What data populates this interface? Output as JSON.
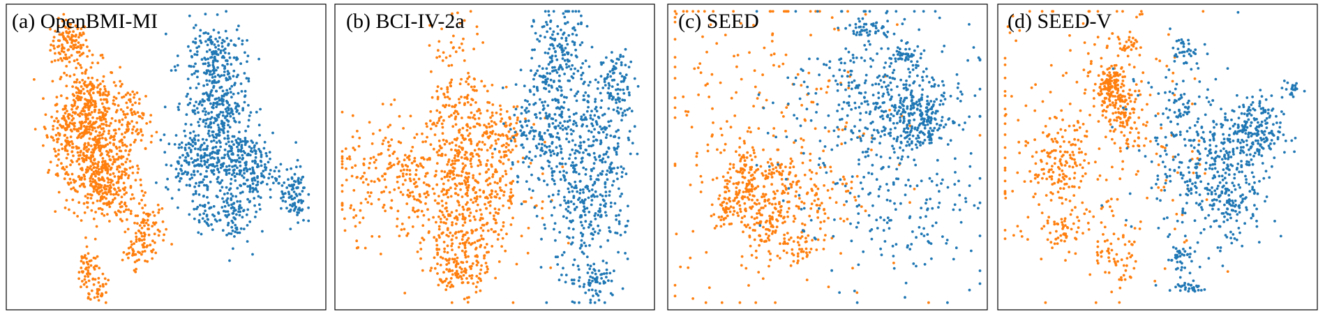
{
  "figure": {
    "background": "#ffffff",
    "frame_color": "#000000"
  },
  "colors": {
    "class_a": "#ff7f0e",
    "class_b": "#1f77b4"
  },
  "chart_data": [
    {
      "type": "scatter",
      "title": "(a) OpenBMI-MI",
      "xlabel": "",
      "ylabel": "",
      "axis_ticks": false,
      "grid": false,
      "legend": "none",
      "xlim": [
        0,
        100
      ],
      "ylim": [
        0,
        100
      ],
      "series": [
        {
          "color": "#ff7f0e",
          "clusters": [
            {
              "cx": 19,
              "cy": 88,
              "sx": 3,
              "sy": 4,
              "n": 120
            },
            {
              "cx": 25,
              "cy": 68,
              "sx": 5,
              "sy": 7,
              "n": 260
            },
            {
              "cx": 28,
              "cy": 52,
              "sx": 6,
              "sy": 8,
              "n": 320
            },
            {
              "cx": 30,
              "cy": 40,
              "sx": 5,
              "sy": 6,
              "n": 220
            },
            {
              "cx": 17,
              "cy": 57,
              "sx": 3,
              "sy": 6,
              "n": 90
            },
            {
              "cx": 40,
              "cy": 62,
              "sx": 3,
              "sy": 6,
              "n": 70
            },
            {
              "cx": 44,
              "cy": 26,
              "sx": 3,
              "sy": 5,
              "n": 80
            },
            {
              "cx": 40,
              "cy": 19,
              "sx": 2,
              "sy": 3,
              "n": 40
            },
            {
              "cx": 25,
              "cy": 12,
              "sx": 2,
              "sy": 4,
              "n": 60
            },
            {
              "cx": 29,
              "cy": 4,
              "sx": 1.5,
              "sy": 2,
              "n": 25
            }
          ]
        },
        {
          "color": "#1f77b4",
          "clusters": [
            {
              "cx": 65,
              "cy": 85,
              "sx": 5,
              "sy": 5,
              "n": 140
            },
            {
              "cx": 66,
              "cy": 68,
              "sx": 5,
              "sy": 7,
              "n": 240
            },
            {
              "cx": 70,
              "cy": 50,
              "sx": 6,
              "sy": 8,
              "n": 260
            },
            {
              "cx": 58,
              "cy": 48,
              "sx": 4,
              "sy": 5,
              "n": 120
            },
            {
              "cx": 78,
              "cy": 45,
              "sx": 4,
              "sy": 6,
              "n": 110
            },
            {
              "cx": 71,
              "cy": 30,
              "sx": 3,
              "sy": 5,
              "n": 80
            },
            {
              "cx": 62,
              "cy": 31,
              "sx": 2,
              "sy": 3,
              "n": 30
            },
            {
              "cx": 91,
              "cy": 37,
              "sx": 2,
              "sy": 5,
              "n": 90
            }
          ]
        }
      ]
    },
    {
      "type": "scatter",
      "title": "(b) BCI-IV-2a",
      "xlabel": "",
      "ylabel": "",
      "axis_ticks": false,
      "grid": false,
      "legend": "none",
      "xlim": [
        0,
        100
      ],
      "ylim": [
        0,
        100
      ],
      "series": [
        {
          "color": "#ff7f0e",
          "clusters": [
            {
              "cx": 39,
              "cy": 68,
              "sx": 5,
              "sy": 14,
              "n": 180
            },
            {
              "cx": 22,
              "cy": 43,
              "sx": 12,
              "sy": 10,
              "n": 320
            },
            {
              "cx": 45,
              "cy": 40,
              "sx": 9,
              "sy": 11,
              "n": 280
            },
            {
              "cx": 38,
              "cy": 20,
              "sx": 7,
              "sy": 8,
              "n": 170
            },
            {
              "cx": 52,
              "cy": 58,
              "sx": 4,
              "sy": 7,
              "n": 80
            },
            {
              "cx": 40,
              "cy": 10,
              "sx": 4,
              "sy": 3,
              "n": 60
            }
          ]
        },
        {
          "color": "#1f77b4",
          "clusters": [
            {
              "cx": 71,
              "cy": 82,
              "sx": 4,
              "sy": 10,
              "n": 180
            },
            {
              "cx": 68,
              "cy": 60,
              "sx": 7,
              "sy": 11,
              "n": 260
            },
            {
              "cx": 84,
              "cy": 55,
              "sx": 5,
              "sy": 14,
              "n": 200
            },
            {
              "cx": 78,
              "cy": 30,
              "sx": 7,
              "sy": 12,
              "n": 220
            },
            {
              "cx": 90,
              "cy": 76,
              "sx": 3,
              "sy": 6,
              "n": 70
            },
            {
              "cx": 82,
              "cy": 9,
              "sx": 3,
              "sy": 3,
              "n": 60
            }
          ]
        }
      ]
    },
    {
      "type": "scatter",
      "title": "(c) SEED",
      "xlabel": "",
      "ylabel": "",
      "axis_ticks": false,
      "grid": false,
      "legend": "none",
      "xlim": [
        0,
        100
      ],
      "ylim": [
        0,
        100
      ],
      "series": [
        {
          "color": "#ff7f0e",
          "clusters": [
            {
              "cx": 24,
              "cy": 42,
              "sx": 4,
              "sy": 6,
              "n": 130
            },
            {
              "cx": 31,
              "cy": 28,
              "sx": 4,
              "sy": 6,
              "n": 130
            },
            {
              "cx": 18,
              "cy": 32,
              "sx": 2,
              "sy": 3,
              "n": 50
            },
            {
              "cx": 35,
              "cy": 44,
              "sx": 3,
              "sy": 3,
              "n": 40
            },
            {
              "cx": 30,
              "cy": 55,
              "sx": 22,
              "sy": 28,
              "n": 240
            },
            {
              "cx": 42,
              "cy": 20,
              "sx": 3,
              "sy": 3,
              "n": 35
            },
            {
              "cx": 48,
              "cy": 38,
              "sx": 6,
              "sy": 8,
              "n": 70
            }
          ]
        },
        {
          "color": "#1f77b4",
          "clusters": [
            {
              "cx": 80,
              "cy": 62,
              "sx": 5,
              "sy": 5,
              "n": 200
            },
            {
              "cx": 67,
              "cy": 72,
              "sx": 10,
              "sy": 9,
              "n": 180
            },
            {
              "cx": 65,
              "cy": 58,
              "sx": 16,
              "sy": 22,
              "n": 260
            },
            {
              "cx": 63,
              "cy": 93,
              "sx": 4,
              "sy": 2,
              "n": 50
            },
            {
              "cx": 75,
              "cy": 84,
              "sx": 3,
              "sy": 2,
              "n": 40
            },
            {
              "cx": 78,
              "cy": 30,
              "sx": 12,
              "sy": 10,
              "n": 90
            }
          ]
        }
      ]
    },
    {
      "type": "scatter",
      "title": "(d) SEED-V",
      "xlabel": "",
      "ylabel": "",
      "axis_ticks": false,
      "grid": false,
      "legend": "none",
      "xlim": [
        0,
        100
      ],
      "ylim": [
        0,
        100
      ],
      "series": [
        {
          "color": "#ff7f0e",
          "clusters": [
            {
              "cx": 35,
              "cy": 73,
              "sx": 3,
              "sy": 4,
              "n": 160
            },
            {
              "cx": 18,
              "cy": 48,
              "sx": 4,
              "sy": 6,
              "n": 110
            },
            {
              "cx": 30,
              "cy": 55,
              "sx": 18,
              "sy": 25,
              "n": 260
            },
            {
              "cx": 40,
              "cy": 63,
              "sx": 4,
              "sy": 6,
              "n": 80
            },
            {
              "cx": 20,
              "cy": 25,
              "sx": 3,
              "sy": 3,
              "n": 40
            },
            {
              "cx": 37,
              "cy": 15,
              "sx": 4,
              "sy": 5,
              "n": 50
            },
            {
              "cx": 40,
              "cy": 88,
              "sx": 3,
              "sy": 2,
              "n": 30
            }
          ]
        },
        {
          "color": "#1f77b4",
          "clusters": [
            {
              "cx": 80,
              "cy": 58,
              "sx": 5,
              "sy": 6,
              "n": 220
            },
            {
              "cx": 67,
              "cy": 45,
              "sx": 8,
              "sy": 10,
              "n": 180
            },
            {
              "cx": 74,
              "cy": 35,
              "sx": 5,
              "sy": 8,
              "n": 100
            },
            {
              "cx": 60,
              "cy": 55,
              "sx": 10,
              "sy": 16,
              "n": 140
            },
            {
              "cx": 58,
              "cy": 86,
              "sx": 2,
              "sy": 2,
              "n": 30
            },
            {
              "cx": 57,
              "cy": 66,
              "sx": 2,
              "sy": 3,
              "n": 30
            },
            {
              "cx": 93,
              "cy": 73,
              "sx": 1.5,
              "sy": 2,
              "n": 20
            },
            {
              "cx": 57,
              "cy": 16,
              "sx": 2,
              "sy": 3,
              "n": 40
            },
            {
              "cx": 60,
              "cy": 6,
              "sx": 3,
              "sy": 1,
              "n": 30
            }
          ]
        }
      ]
    }
  ]
}
